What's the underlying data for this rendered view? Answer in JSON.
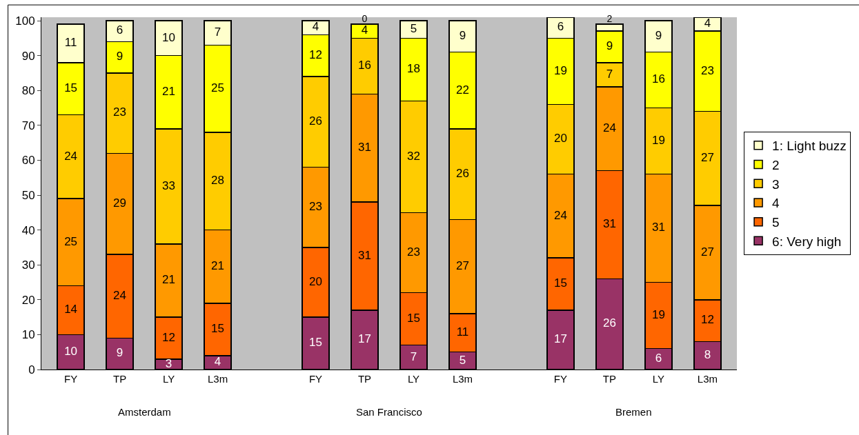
{
  "chart_data": {
    "type": "bar",
    "stacked": true,
    "data_labels": true,
    "grid": false,
    "legend": "right",
    "categories": [
      "FY",
      "TP",
      "LY",
      "L3m",
      null,
      "FY",
      "TP",
      "LY",
      "L3m",
      null,
      "FY",
      "TP",
      "LY",
      "L3m"
    ],
    "annotations": [
      "Amsterdam",
      "San Francisco",
      "Bremen"
    ],
    "ylim": [
      0,
      101
    ],
    "yticks": [
      0,
      10,
      20,
      30,
      40,
      50,
      60,
      70,
      80,
      90,
      100
    ],
    "series": [
      {
        "name": "6: Very high",
        "color": "#993366",
        "values": [
          10,
          9,
          3,
          4,
          null,
          15,
          17,
          7,
          5,
          null,
          17,
          26,
          6,
          8
        ]
      },
      {
        "name": "5",
        "color": "#ff6600",
        "values": [
          14,
          24,
          12,
          15,
          null,
          20,
          31,
          15,
          11,
          null,
          15,
          31,
          19,
          12
        ]
      },
      {
        "name": "4",
        "color": "#ff9900",
        "values": [
          25,
          29,
          21,
          21,
          null,
          23,
          31,
          23,
          27,
          null,
          24,
          24,
          31,
          27
        ]
      },
      {
        "name": "3",
        "color": "#ffcc00",
        "values": [
          24,
          23,
          33,
          28,
          null,
          26,
          16,
          32,
          26,
          null,
          20,
          7,
          19,
          27
        ]
      },
      {
        "name": "2",
        "color": "#ffff00",
        "values": [
          15,
          9,
          21,
          25,
          null,
          12,
          4,
          18,
          22,
          null,
          19,
          9,
          16,
          23
        ]
      },
      {
        "name": "1: Light buzz",
        "color": "#ffffcc",
        "values": [
          11,
          6,
          10,
          7,
          null,
          4,
          0,
          5,
          9,
          null,
          6,
          2,
          9,
          4
        ]
      }
    ]
  }
}
